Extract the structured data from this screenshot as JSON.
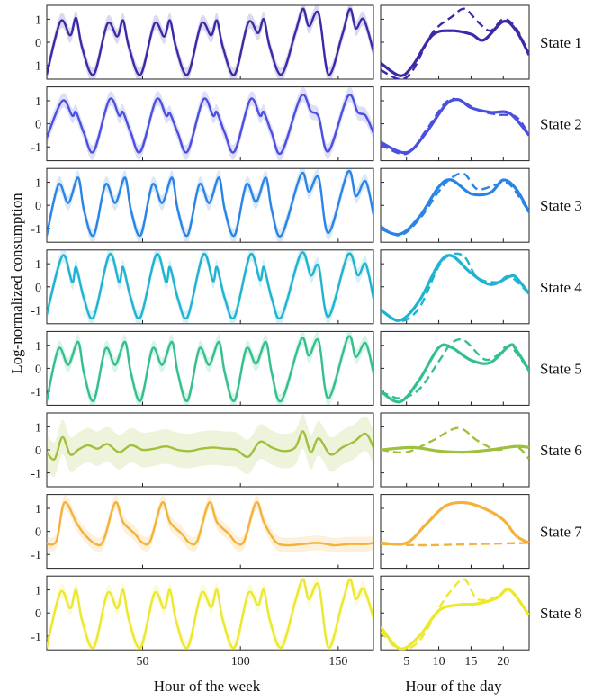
{
  "chart_data": {
    "type": "line",
    "ylabel": "Log-normalized consumption",
    "week_panel": {
      "xlabel": "Hour of the week",
      "xlim": [
        1,
        168
      ],
      "xticks": [
        50,
        100,
        150
      ],
      "ylim": [
        -1.6,
        1.6
      ],
      "yticks": [
        -1,
        0,
        1
      ],
      "ytick_labels": [
        "-1",
        "0",
        "1"
      ]
    },
    "day_panel": {
      "xlabel": "Hour of the day",
      "xlim": [
        1,
        24
      ],
      "xticks": [
        5,
        10,
        15,
        20
      ],
      "ylim": [
        -1.6,
        1.6
      ]
    },
    "states": [
      {
        "name": "State 1",
        "color": "#3a2aa8",
        "week_pattern": "weekday_double",
        "week_hours": [
          1,
          8,
          13,
          16,
          19,
          25,
          32,
          37,
          40,
          43,
          49,
          56,
          61,
          64,
          67,
          73,
          80,
          85,
          88,
          91,
          97,
          104,
          109,
          112,
          115,
          121,
          128,
          132,
          135,
          140,
          145,
          152,
          156,
          159,
          163,
          168
        ],
        "week_values": [
          -1.4,
          0.9,
          0.3,
          1.05,
          -0.2,
          -1.4,
          0.8,
          0.25,
          0.95,
          -0.2,
          -1.4,
          0.8,
          0.25,
          0.95,
          -0.2,
          -1.4,
          0.8,
          0.3,
          0.95,
          -0.2,
          -1.4,
          0.85,
          0.4,
          1.0,
          -0.2,
          -1.4,
          0.4,
          1.45,
          0.7,
          1.25,
          -1.4,
          0.3,
          1.45,
          0.6,
          1.0,
          -0.4
        ],
        "day_solid": [
          [
            1,
            -0.9
          ],
          [
            4,
            -1.45
          ],
          [
            6,
            -1.0
          ],
          [
            9,
            0.3
          ],
          [
            12,
            0.5
          ],
          [
            15,
            0.35
          ],
          [
            17,
            0.1
          ],
          [
            20,
            0.9
          ],
          [
            22,
            0.5
          ],
          [
            24,
            -0.55
          ]
        ],
        "day_dashed": [
          [
            1,
            -1.2
          ],
          [
            4,
            -1.6
          ],
          [
            6,
            -1.2
          ],
          [
            9,
            0.4
          ],
          [
            12,
            1.1
          ],
          [
            14,
            1.45
          ],
          [
            16,
            0.9
          ],
          [
            18,
            0.5
          ],
          [
            20,
            1.0
          ],
          [
            22,
            0.6
          ],
          [
            24,
            -0.55
          ]
        ]
      },
      {
        "name": "State 2",
        "color": "#4b4fe0",
        "week_pattern": "weekday_single",
        "week_hours": [
          1,
          9,
          14,
          16,
          20,
          25,
          33,
          38,
          40,
          44,
          49,
          57,
          62,
          64,
          68,
          73,
          81,
          86,
          88,
          92,
          97,
          105,
          110,
          112,
          116,
          121,
          131,
          136,
          140,
          145,
          155,
          160,
          164,
          168
        ],
        "week_values": [
          -0.6,
          1.0,
          0.35,
          0.5,
          -0.4,
          -1.2,
          1.05,
          0.35,
          0.5,
          -0.4,
          -1.2,
          1.05,
          0.35,
          0.45,
          -0.4,
          -1.2,
          1.05,
          0.35,
          0.5,
          -0.4,
          -1.2,
          1.05,
          0.35,
          0.5,
          -0.4,
          -1.25,
          1.2,
          0.55,
          0.3,
          -1.2,
          1.2,
          0.5,
          0.35,
          -0.4
        ],
        "day_solid": [
          [
            1,
            -0.8
          ],
          [
            5,
            -1.25
          ],
          [
            8,
            -0.4
          ],
          [
            11,
            0.8
          ],
          [
            13,
            1.05
          ],
          [
            15,
            0.7
          ],
          [
            18,
            0.5
          ],
          [
            21,
            0.45
          ],
          [
            24,
            -0.5
          ]
        ],
        "day_dashed": [
          [
            1,
            -0.9
          ],
          [
            5,
            -1.3
          ],
          [
            8,
            -0.3
          ],
          [
            11,
            0.9
          ],
          [
            13,
            1.05
          ],
          [
            16,
            0.6
          ],
          [
            19,
            0.4
          ],
          [
            22,
            0.3
          ],
          [
            24,
            -0.5
          ]
        ]
      },
      {
        "name": "State 3",
        "color": "#2a84e6",
        "week_pattern": "weekday_double",
        "week_hours": [
          1,
          7,
          12,
          17,
          20,
          25,
          31,
          36,
          41,
          44,
          49,
          55,
          60,
          65,
          68,
          73,
          79,
          84,
          89,
          92,
          97,
          103,
          108,
          113,
          116,
          121,
          131,
          135,
          140,
          145,
          155,
          159,
          164,
          168
        ],
        "week_values": [
          -1.3,
          0.9,
          0.1,
          1.2,
          -0.2,
          -1.3,
          0.9,
          0.1,
          1.2,
          -0.2,
          -1.3,
          0.9,
          0.1,
          1.2,
          -0.2,
          -1.3,
          0.9,
          0.1,
          1.2,
          -0.2,
          -1.3,
          0.9,
          0.15,
          1.2,
          -0.2,
          -1.3,
          1.35,
          0.6,
          1.2,
          -1.2,
          1.45,
          0.4,
          1.05,
          -0.4
        ],
        "day_solid": [
          [
            1,
            -1.0
          ],
          [
            4,
            -1.25
          ],
          [
            7,
            -0.5
          ],
          [
            10,
            0.8
          ],
          [
            12,
            1.1
          ],
          [
            15,
            0.5
          ],
          [
            18,
            0.55
          ],
          [
            20,
            1.1
          ],
          [
            22,
            0.7
          ],
          [
            24,
            -0.3
          ]
        ],
        "day_dashed": [
          [
            1,
            -0.9
          ],
          [
            4,
            -1.3
          ],
          [
            7,
            -0.6
          ],
          [
            10,
            0.6
          ],
          [
            12,
            1.2
          ],
          [
            14,
            1.35
          ],
          [
            16,
            0.7
          ],
          [
            19,
            0.9
          ],
          [
            21,
            0.9
          ],
          [
            24,
            -0.3
          ]
        ]
      },
      {
        "name": "State 4",
        "color": "#1fb3d1",
        "week_pattern": "weekday_double",
        "week_hours": [
          1,
          9,
          14,
          16,
          20,
          25,
          33,
          38,
          40,
          44,
          49,
          57,
          62,
          64,
          68,
          73,
          81,
          86,
          88,
          92,
          97,
          105,
          110,
          112,
          116,
          121,
          131,
          136,
          140,
          145,
          155,
          160,
          164,
          168
        ],
        "week_values": [
          -1.2,
          1.35,
          0.2,
          0.85,
          -0.5,
          -1.3,
          1.4,
          0.2,
          0.85,
          -0.5,
          -1.3,
          1.4,
          0.2,
          0.85,
          -0.5,
          -1.3,
          1.4,
          0.25,
          0.85,
          -0.5,
          -1.3,
          1.4,
          0.3,
          0.85,
          -0.5,
          -1.3,
          1.45,
          0.5,
          0.9,
          -1.3,
          1.4,
          0.5,
          1.0,
          -0.5
        ],
        "day_solid": [
          [
            1,
            -1.0
          ],
          [
            4,
            -1.45
          ],
          [
            7,
            -0.6
          ],
          [
            10,
            1.0
          ],
          [
            12,
            1.35
          ],
          [
            15,
            0.6
          ],
          [
            18,
            0.1
          ],
          [
            21,
            0.45
          ],
          [
            22,
            0.4
          ],
          [
            24,
            -0.3
          ]
        ],
        "day_dashed": [
          [
            1,
            -1.0
          ],
          [
            4,
            -1.5
          ],
          [
            7,
            -0.9
          ],
          [
            10,
            0.9
          ],
          [
            12,
            1.4
          ],
          [
            14,
            1.3
          ],
          [
            16,
            0.4
          ],
          [
            19,
            0.2
          ],
          [
            21,
            0.45
          ],
          [
            24,
            -0.3
          ]
        ]
      },
      {
        "name": "State 5",
        "color": "#34c08c",
        "week_pattern": "weekday_double",
        "week_hours": [
          1,
          7,
          12,
          17,
          20,
          25,
          31,
          36,
          41,
          44,
          49,
          55,
          60,
          65,
          68,
          73,
          79,
          84,
          89,
          92,
          97,
          103,
          108,
          113,
          116,
          121,
          131,
          135,
          140,
          145,
          155,
          159,
          164,
          168
        ],
        "week_values": [
          -1.4,
          0.85,
          0.15,
          1.15,
          -0.2,
          -1.4,
          0.85,
          0.15,
          1.15,
          -0.2,
          -1.4,
          0.85,
          0.15,
          1.15,
          -0.2,
          -1.4,
          0.85,
          0.15,
          1.15,
          -0.2,
          -1.4,
          0.85,
          0.2,
          1.15,
          -0.2,
          -1.4,
          1.25,
          0.55,
          1.2,
          -1.3,
          1.35,
          0.5,
          1.1,
          -0.2
        ],
        "day_solid": [
          [
            1,
            -1.0
          ],
          [
            4,
            -1.45
          ],
          [
            7,
            -0.5
          ],
          [
            10,
            0.9
          ],
          [
            12,
            0.9
          ],
          [
            15,
            0.35
          ],
          [
            18,
            0.25
          ],
          [
            21,
            1.0
          ],
          [
            22,
            0.8
          ],
          [
            24,
            -0.1
          ]
        ],
        "day_dashed": [
          [
            1,
            -1.0
          ],
          [
            4,
            -1.3
          ],
          [
            7,
            -0.9
          ],
          [
            10,
            0.3
          ],
          [
            12,
            1.1
          ],
          [
            14,
            1.2
          ],
          [
            17,
            0.4
          ],
          [
            19,
            0.55
          ],
          [
            21,
            0.95
          ],
          [
            24,
            -0.1
          ]
        ]
      },
      {
        "name": "State 6",
        "color": "#9fc03a",
        "week_pattern": "noisy_flat",
        "week_hours": [
          1,
          5,
          9,
          13,
          17,
          22,
          27,
          32,
          38,
          44,
          50,
          56,
          62,
          68,
          74,
          80,
          86,
          92,
          98,
          104,
          110,
          116,
          122,
          128,
          132,
          136,
          140,
          146,
          152,
          158,
          164,
          168
        ],
        "week_values": [
          -0.1,
          -0.4,
          0.55,
          -0.2,
          0.0,
          0.2,
          0.05,
          0.25,
          -0.1,
          0.2,
          0.0,
          0.05,
          0.15,
          0.0,
          -0.05,
          0.05,
          0.1,
          0.05,
          0.0,
          -0.3,
          0.35,
          0.1,
          -0.05,
          0.1,
          0.8,
          -0.1,
          0.5,
          -0.2,
          0.1,
          0.35,
          0.7,
          0.1
        ],
        "day_solid": [
          [
            1,
            0.0
          ],
          [
            6,
            0.1
          ],
          [
            10,
            -0.05
          ],
          [
            14,
            -0.1
          ],
          [
            18,
            0.0
          ],
          [
            22,
            0.15
          ],
          [
            24,
            0.1
          ]
        ],
        "day_dashed": [
          [
            1,
            0.0
          ],
          [
            5,
            -0.1
          ],
          [
            9,
            0.4
          ],
          [
            13,
            0.95
          ],
          [
            16,
            0.4
          ],
          [
            19,
            0.0
          ],
          [
            22,
            0.15
          ],
          [
            24,
            -0.4
          ]
        ]
      },
      {
        "name": "State 7",
        "color": "#f5b23a",
        "week_pattern": "weekday_single_then_flat",
        "week_hours": [
          1,
          6,
          10,
          16,
          20,
          26,
          30,
          36,
          40,
          46,
          50,
          54,
          60,
          64,
          70,
          74,
          78,
          84,
          88,
          94,
          98,
          102,
          108,
          112,
          118,
          124,
          132,
          140,
          148,
          156,
          164,
          168
        ],
        "week_values": [
          -0.55,
          -0.4,
          1.25,
          0.4,
          -0.1,
          -0.55,
          -0.4,
          1.25,
          0.4,
          -0.1,
          -0.5,
          -0.4,
          1.25,
          0.4,
          -0.1,
          -0.5,
          -0.4,
          1.25,
          0.4,
          -0.1,
          -0.5,
          -0.4,
          1.25,
          0.4,
          -0.45,
          -0.6,
          -0.55,
          -0.5,
          -0.6,
          -0.55,
          -0.55,
          -0.5
        ],
        "day_solid": [
          [
            1,
            -0.5
          ],
          [
            5,
            -0.5
          ],
          [
            8,
            0.3
          ],
          [
            11,
            1.1
          ],
          [
            14,
            1.25
          ],
          [
            17,
            1.0
          ],
          [
            20,
            0.5
          ],
          [
            22,
            -0.2
          ],
          [
            24,
            -0.5
          ]
        ],
        "day_dashed": [
          [
            1,
            -0.55
          ],
          [
            8,
            -0.6
          ],
          [
            16,
            -0.55
          ],
          [
            24,
            -0.5
          ]
        ]
      },
      {
        "name": "State 8",
        "color": "#ece82c",
        "week_pattern": "weekday_double",
        "week_hours": [
          1,
          8,
          13,
          16,
          19,
          25,
          32,
          37,
          40,
          43,
          49,
          56,
          61,
          64,
          67,
          73,
          80,
          85,
          88,
          91,
          97,
          104,
          109,
          112,
          115,
          121,
          128,
          132,
          135,
          140,
          145,
          152,
          156,
          159,
          163,
          168
        ],
        "week_values": [
          -1.5,
          0.9,
          0.2,
          1.0,
          -0.3,
          -1.5,
          0.85,
          0.2,
          1.0,
          -0.3,
          -1.5,
          0.85,
          0.2,
          1.0,
          -0.3,
          -1.5,
          0.85,
          0.25,
          1.0,
          -0.3,
          -1.5,
          0.85,
          0.35,
          1.0,
          -0.3,
          -1.5,
          0.5,
          1.45,
          0.6,
          1.2,
          -1.5,
          0.4,
          1.45,
          0.6,
          1.05,
          -0.2
        ],
        "day_solid": [
          [
            1,
            -0.6
          ],
          [
            4,
            -1.55
          ],
          [
            7,
            -1.0
          ],
          [
            10,
            0.1
          ],
          [
            13,
            0.35
          ],
          [
            16,
            0.4
          ],
          [
            19,
            0.65
          ],
          [
            21,
            1.0
          ],
          [
            24,
            -0.1
          ]
        ],
        "day_dashed": [
          [
            1,
            -0.8
          ],
          [
            4,
            -1.6
          ],
          [
            7,
            -1.2
          ],
          [
            10,
            0.2
          ],
          [
            12,
            1.0
          ],
          [
            14,
            1.45
          ],
          [
            16,
            0.6
          ],
          [
            19,
            0.7
          ],
          [
            21,
            1.0
          ],
          [
            24,
            -0.1
          ]
        ]
      }
    ]
  }
}
